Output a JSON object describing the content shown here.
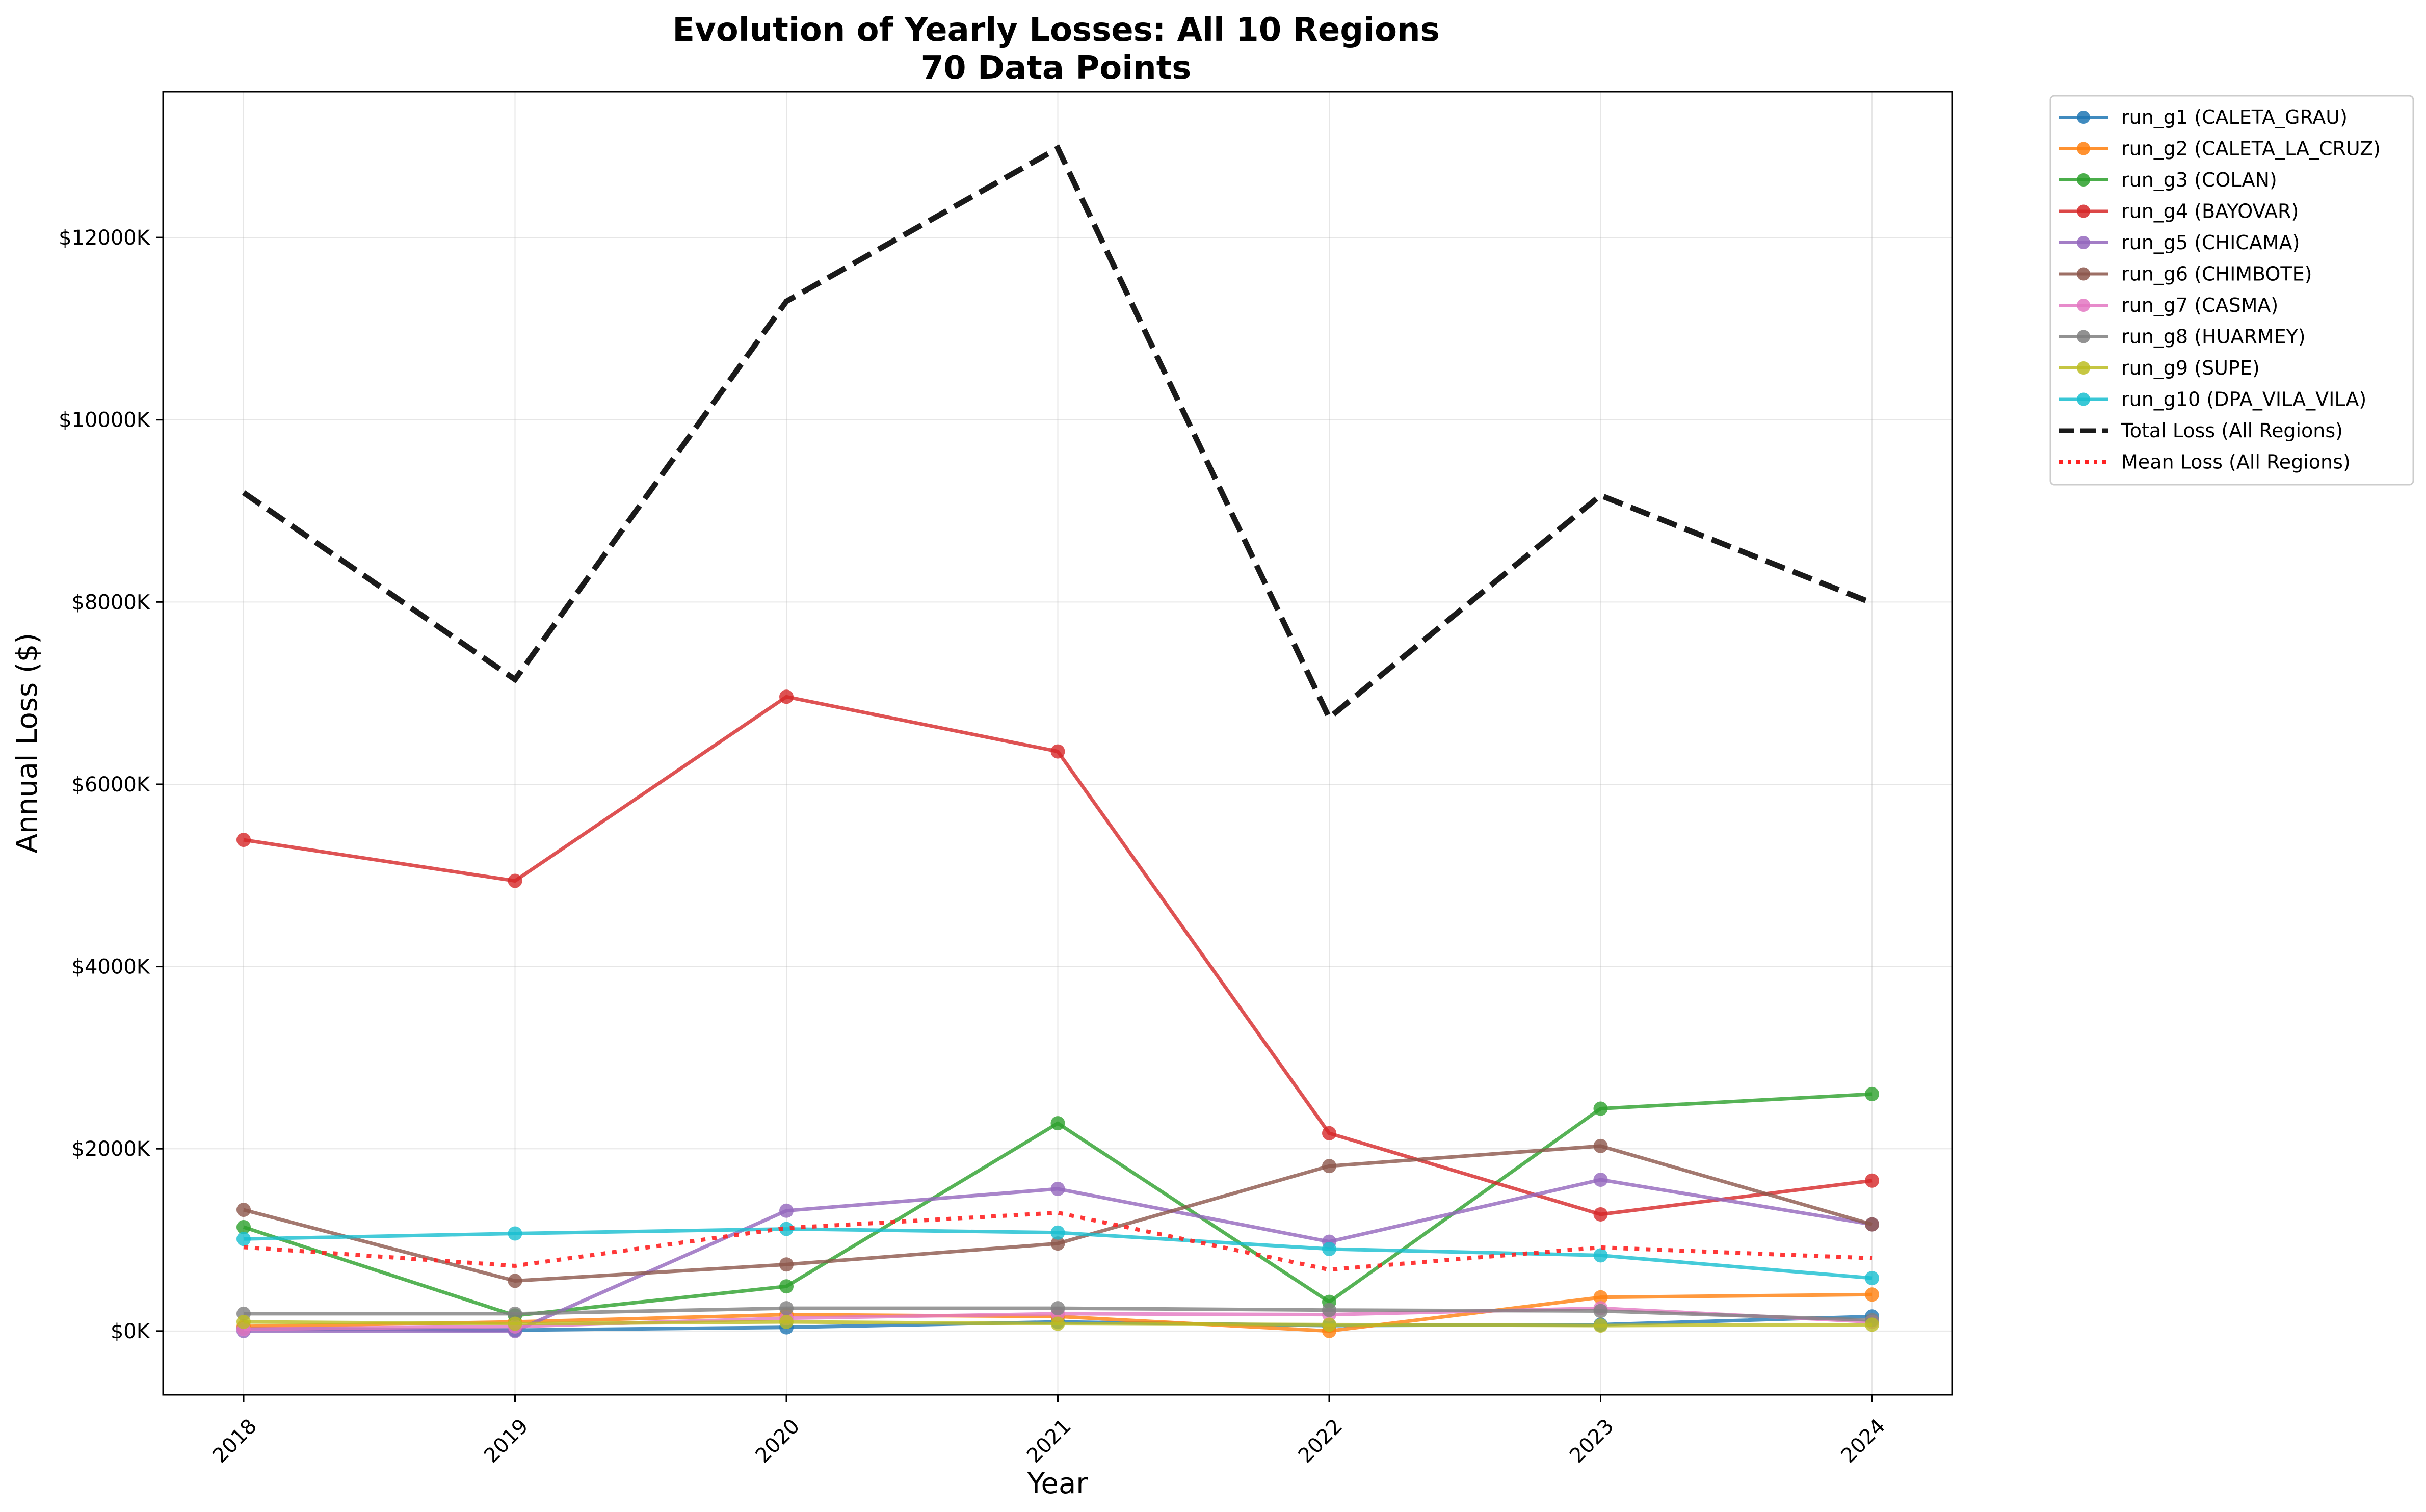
{
  "chart_data": {
    "type": "line",
    "title": "Evolution of Yearly Losses: All 10 Regions",
    "subtitle": "70 Data Points",
    "xlabel": "Year",
    "ylabel": "Annual Loss ($)",
    "x": [
      "2018",
      "2019",
      "2020",
      "2021",
      "2022",
      "2023",
      "2024"
    ],
    "ylim": [
      -700,
      13600
    ],
    "yticks": [
      {
        "value": 0,
        "label": "$0K"
      },
      {
        "value": 2000,
        "label": "$2000K"
      },
      {
        "value": 4000,
        "label": "$4000K"
      },
      {
        "value": 6000,
        "label": "$6000K"
      },
      {
        "value": 8000,
        "label": "$8000K"
      },
      {
        "value": 10000,
        "label": "$10000K"
      },
      {
        "value": 12000,
        "label": "$12000K"
      }
    ],
    "value_units": "thousands of dollars",
    "legend_position": "outside-top-right",
    "grid": true,
    "series": [
      {
        "name": "run_g1 (CALETA_GRAU)",
        "color": "#1f77b4",
        "style": "solid-marker",
        "values": [
          30,
          10,
          40,
          100,
          60,
          70,
          160
        ]
      },
      {
        "name": "run_g2 (CALETA_LA_CRUZ)",
        "color": "#ff7f0e",
        "style": "solid-marker",
        "values": [
          50,
          100,
          180,
          160,
          0,
          370,
          400
        ]
      },
      {
        "name": "run_g3 (COLAN)",
        "color": "#2ca02c",
        "style": "solid-marker",
        "values": [
          1140,
          170,
          490,
          2280,
          320,
          2440,
          2600
        ]
      },
      {
        "name": "run_g4 (BAYOVAR)",
        "color": "#d62728",
        "style": "solid-marker",
        "values": [
          5390,
          4940,
          6960,
          6360,
          2170,
          1280,
          1650
        ]
      },
      {
        "name": "run_g5 (CHICAMA)",
        "color": "#9467bd",
        "style": "solid-marker",
        "values": [
          0,
          0,
          1320,
          1560,
          980,
          1660,
          1170
        ]
      },
      {
        "name": "run_g6 (CHIMBOTE)",
        "color": "#8c564b",
        "style": "solid-marker",
        "values": [
          1330,
          550,
          730,
          960,
          1810,
          2030,
          1170
        ]
      },
      {
        "name": "run_g7 (CASMA)",
        "color": "#e377c2",
        "style": "solid-marker",
        "values": [
          20,
          50,
          140,
          190,
          180,
          250,
          100
        ]
      },
      {
        "name": "run_g8 (HUARMEY)",
        "color": "#7f7f7f",
        "style": "solid-marker",
        "values": [
          190,
          190,
          250,
          250,
          230,
          220,
          120
        ]
      },
      {
        "name": "run_g9 (SUPE)",
        "color": "#bcbd22",
        "style": "solid-marker",
        "values": [
          100,
          80,
          100,
          80,
          70,
          60,
          70
        ]
      },
      {
        "name": "run_g10 (DPA_VILA_VILA)",
        "color": "#17becf",
        "style": "solid-marker",
        "values": [
          1010,
          1070,
          1120,
          1080,
          900,
          830,
          580
        ]
      },
      {
        "name": "Total Loss (All Regions)",
        "color": "#1a1a1a",
        "style": "dashed",
        "values": [
          9200,
          7150,
          11300,
          12980,
          6730,
          9170,
          7990
        ]
      },
      {
        "name": "Mean Loss (All Regions)",
        "color": "#ff2222",
        "style": "dotted",
        "values": [
          920,
          715,
          1130,
          1298,
          673,
          917,
          799
        ]
      }
    ]
  }
}
